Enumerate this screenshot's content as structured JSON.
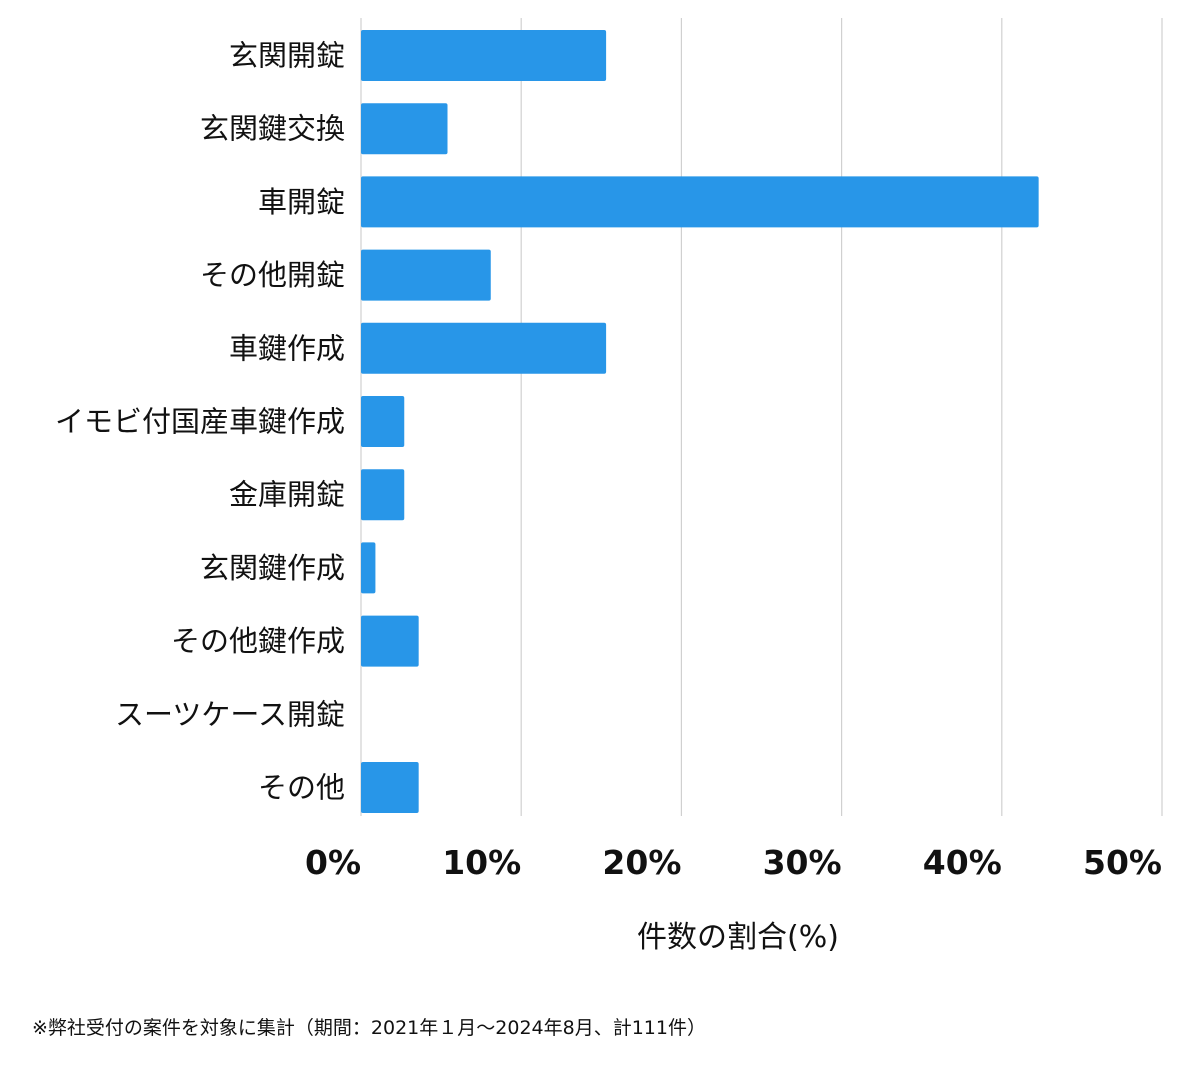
{
  "chart_data": {
    "type": "bar",
    "orientation": "horizontal",
    "categories": [
      "玄関開錠",
      "玄関鍵交換",
      "車開錠",
      "その他開錠",
      "車鍵作成",
      "イモビ付国産車鍵作成",
      "金庫開錠",
      "玄関鍵作成",
      "その他鍵作成",
      "スーツケース開錠",
      "その他"
    ],
    "values": [
      15.3,
      5.4,
      42.3,
      8.1,
      15.3,
      2.7,
      2.7,
      0.9,
      3.6,
      0,
      3.6
    ],
    "xlim": [
      0,
      50
    ],
    "xticks": [
      0,
      10,
      20,
      30,
      40,
      50
    ],
    "tick_suffix": "%",
    "xlabel": "件数の割合(%)",
    "grid": "vertical",
    "bar_color": "#2896e8",
    "grid_color": "#d0d0d0"
  },
  "footnote": "※弊社受付の案件を対象に集計（期間：2021年１月〜2024年8月、計111件）"
}
